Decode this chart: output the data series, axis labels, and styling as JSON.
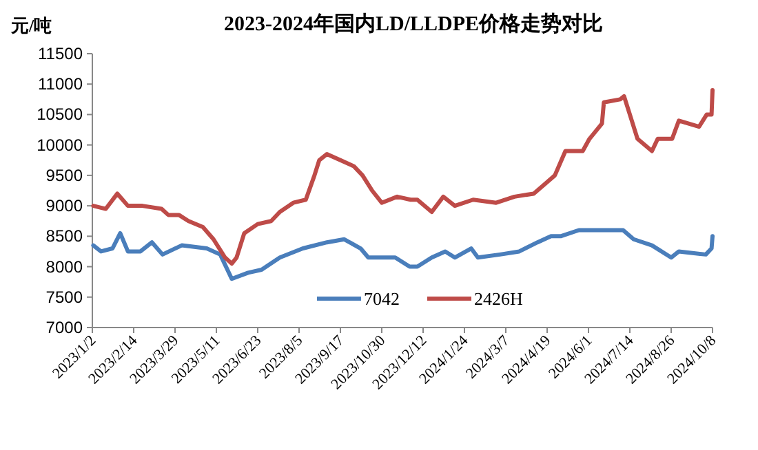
{
  "chart_data": {
    "type": "line",
    "title": "2023-2024年国内LD/LLDPE价格走势对比",
    "ylabel": "元/吨",
    "xlim": [
      "2023-01-02",
      "2024-10-08"
    ],
    "xticks": [
      {
        "value": "2023-01-02",
        "label": "2023/1/2"
      },
      {
        "value": "2023-02-14",
        "label": "2023/2/14"
      },
      {
        "value": "2023-03-29",
        "label": "2023/3/29"
      },
      {
        "value": "2023-05-11",
        "label": "2023/5/11"
      },
      {
        "value": "2023-06-23",
        "label": "2023/6/23"
      },
      {
        "value": "2023-08-05",
        "label": "2023/8/5"
      },
      {
        "value": "2023-09-17",
        "label": "2023/9/17"
      },
      {
        "value": "2023-10-30",
        "label": "2023/10/30"
      },
      {
        "value": "2023-12-12",
        "label": "2023/12/12"
      },
      {
        "value": "2024-01-24",
        "label": "2024/1/24"
      },
      {
        "value": "2024-03-07",
        "label": "2024/3/7"
      },
      {
        "value": "2024-04-19",
        "label": "2024/4/19"
      },
      {
        "value": "2024-06-01",
        "label": "2024/6/1"
      },
      {
        "value": "2024-07-14",
        "label": "2024/7/14"
      },
      {
        "value": "2024-08-26",
        "label": "2024/8/26"
      },
      {
        "value": "2024-10-08",
        "label": "2024/10/8"
      }
    ],
    "ylim": [
      7000,
      11500
    ],
    "yticks": [
      7000,
      7500,
      8000,
      8500,
      9000,
      9500,
      10000,
      10500,
      11000,
      11500
    ],
    "legend": "bottom",
    "series": [
      {
        "name": "7042",
        "color": "#4a7ebb",
        "x": [
          "2023-01-03",
          "2023-01-11",
          "2023-01-23",
          "2023-01-31",
          "2023-02-08",
          "2023-02-21",
          "2023-03-05",
          "2023-03-16",
          "2023-04-05",
          "2023-05-01",
          "2023-05-15",
          "2023-05-27",
          "2023-06-13",
          "2023-06-27",
          "2023-07-16",
          "2023-08-09",
          "2023-09-03",
          "2023-09-21",
          "2023-10-08",
          "2023-10-16",
          "2023-11-13",
          "2023-11-28",
          "2023-12-06",
          "2023-12-21",
          "2024-01-04",
          "2024-01-14",
          "2024-01-31",
          "2024-02-07",
          "2024-03-01",
          "2024-03-21",
          "2024-04-09",
          "2024-04-23",
          "2024-05-03",
          "2024-05-22",
          "2024-06-15",
          "2024-07-07",
          "2024-07-18",
          "2024-08-06",
          "2024-08-26",
          "2024-09-03",
          "2024-10-01",
          "2024-10-07",
          "2024-10-08"
        ],
        "values": [
          8350,
          8250,
          8300,
          8550,
          8250,
          8250,
          8400,
          8200,
          8350,
          8300,
          8200,
          7800,
          7900,
          7950,
          8150,
          8300,
          8400,
          8450,
          8300,
          8150,
          8150,
          8000,
          8000,
          8150,
          8250,
          8150,
          8300,
          8150,
          8200,
          8250,
          8400,
          8500,
          8500,
          8600,
          8600,
          8600,
          8450,
          8350,
          8150,
          8250,
          8200,
          8300,
          8500
        ]
      },
      {
        "name": "2426H",
        "color": "#be4b48",
        "x": [
          "2023-01-03",
          "2023-01-16",
          "2023-01-28",
          "2023-02-08",
          "2023-02-23",
          "2023-03-15",
          "2023-03-22",
          "2023-04-02",
          "2023-04-12",
          "2023-04-27",
          "2023-05-08",
          "2023-05-20",
          "2023-05-27",
          "2023-06-01",
          "2023-06-09",
          "2023-06-23",
          "2023-07-07",
          "2023-07-16",
          "2023-07-30",
          "2023-08-12",
          "2023-08-21",
          "2023-08-26",
          "2023-09-03",
          "2023-09-17",
          "2023-10-01",
          "2023-10-10",
          "2023-10-20",
          "2023-10-30",
          "2023-11-15",
          "2023-11-29",
          "2023-12-06",
          "2023-12-21",
          "2024-01-02",
          "2024-01-14",
          "2024-02-02",
          "2024-02-26",
          "2024-03-16",
          "2024-04-05",
          "2024-04-16",
          "2024-04-27",
          "2024-05-08",
          "2024-05-26",
          "2024-06-02",
          "2024-06-15",
          "2024-06-17",
          "2024-07-04",
          "2024-07-08",
          "2024-07-14",
          "2024-07-22",
          "2024-08-06",
          "2024-08-12",
          "2024-08-27",
          "2024-09-03",
          "2024-09-24",
          "2024-10-02",
          "2024-10-07",
          "2024-10-08"
        ],
        "values": [
          9000,
          8950,
          9200,
          9000,
          9000,
          8950,
          8850,
          8850,
          8750,
          8650,
          8450,
          8150,
          8050,
          8150,
          8550,
          8700,
          8750,
          8900,
          9050,
          9100,
          9500,
          9750,
          9850,
          9750,
          9650,
          9500,
          9250,
          9050,
          9150,
          9100,
          9100,
          8900,
          9150,
          9000,
          9100,
          9050,
          9150,
          9200,
          9350,
          9500,
          9900,
          9900,
          10100,
          10350,
          10700,
          10750,
          10800,
          10500,
          10100,
          9900,
          10100,
          10100,
          10400,
          10300,
          10500,
          10500,
          10900
        ]
      }
    ]
  }
}
